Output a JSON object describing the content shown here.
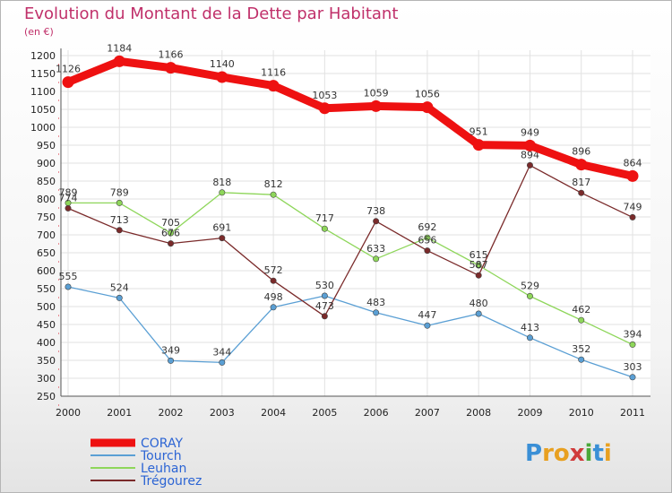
{
  "header": {
    "title": "Evolution du Montant de la Dette par Habitant",
    "unit": "(en €)"
  },
  "logo": {
    "letters": [
      "P",
      "r",
      "o",
      "x",
      "i",
      "t",
      "i"
    ],
    "colors": [
      "#3a8fd6",
      "#e8a020",
      "#e8a020",
      "#d03a3a",
      "#4aa83a",
      "#3a8fd6",
      "#e8a020"
    ]
  },
  "chart_data": {
    "type": "line",
    "title": "Evolution du Montant de la Dette par Habitant",
    "ylabel": "(en €)",
    "xlabel": "",
    "x": [
      "2000",
      "2001",
      "2002",
      "2003",
      "2004",
      "2005",
      "2006",
      "2007",
      "2008",
      "2009",
      "2010",
      "2011"
    ],
    "ylim": [
      250,
      1200
    ],
    "yticks": [
      250,
      300,
      350,
      400,
      450,
      500,
      550,
      600,
      650,
      700,
      750,
      800,
      850,
      900,
      950,
      1000,
      1050,
      1100,
      1150,
      1200
    ],
    "grid": true,
    "legend_position": "bottom-left",
    "series": [
      {
        "name": "CORAY",
        "color": "#ee1111",
        "values": [
          1126,
          1184,
          1166,
          1140,
          1116,
          1053,
          1059,
          1056,
          951,
          949,
          896,
          864
        ]
      },
      {
        "name": "Tourch",
        "color": "#5a9fd4",
        "values": [
          555,
          524,
          349,
          344,
          498,
          530,
          483,
          447,
          480,
          413,
          352,
          303
        ]
      },
      {
        "name": "Leuhan",
        "color": "#8ed65a",
        "values": [
          789,
          789,
          705,
          818,
          812,
          717,
          633,
          692,
          615,
          529,
          462,
          394
        ]
      },
      {
        "name": "Trégourez",
        "color": "#7a2a2a",
        "values": [
          774,
          713,
          676,
          691,
          572,
          473,
          738,
          656,
          587,
          894,
          817,
          749
        ]
      }
    ]
  }
}
